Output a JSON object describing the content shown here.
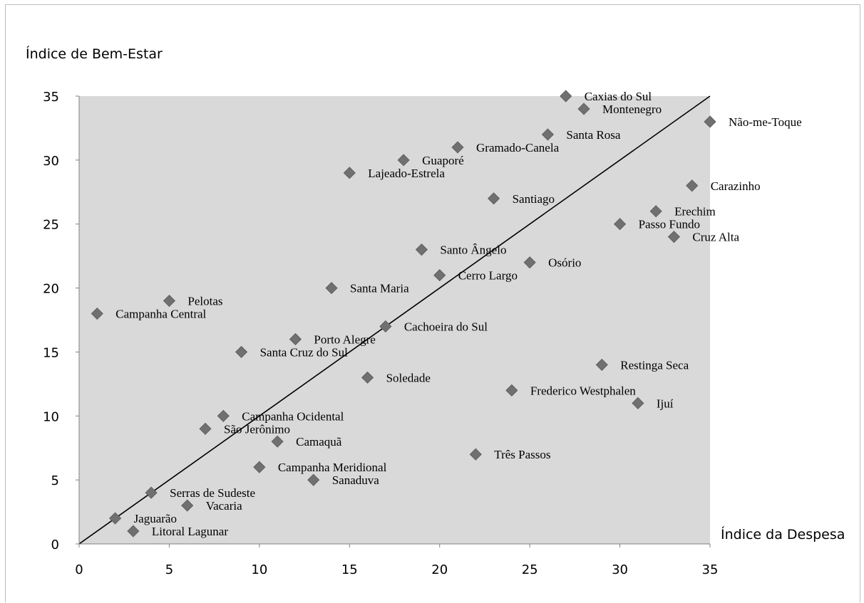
{
  "chart_data": {
    "type": "scatter",
    "title": "",
    "ylabel": "Índice de Bem-Estar",
    "xlabel": "Índice da Despesa",
    "xlim": [
      0,
      35
    ],
    "ylim": [
      0,
      35
    ],
    "xticks": [
      0,
      5,
      10,
      15,
      20,
      25,
      30,
      35
    ],
    "yticks": [
      0,
      5,
      10,
      15,
      20,
      25,
      30,
      35
    ],
    "grid": false,
    "legend": "none",
    "colors": {
      "plot_background": "#d9d9d9",
      "marker": "#707070",
      "reference_line": "#000000"
    },
    "reference_line": {
      "from": [
        0,
        0
      ],
      "to": [
        35,
        35
      ]
    },
    "points": [
      {
        "label": "Caxias do Sul",
        "x": 27,
        "y": 35
      },
      {
        "label": "Montenegro",
        "x": 28,
        "y": 34
      },
      {
        "label": "Não-me-Toque",
        "x": 35,
        "y": 33
      },
      {
        "label": "Santa Rosa",
        "x": 26,
        "y": 32
      },
      {
        "label": "Gramado-Canela",
        "x": 21,
        "y": 31
      },
      {
        "label": "Guaporé",
        "x": 18,
        "y": 30
      },
      {
        "label": "Lajeado-Estrela",
        "x": 15,
        "y": 29
      },
      {
        "label": "Carazinho",
        "x": 34,
        "y": 28
      },
      {
        "label": "Santiago",
        "x": 23,
        "y": 27
      },
      {
        "label": "Erechim",
        "x": 32,
        "y": 26
      },
      {
        "label": "Passo Fundo",
        "x": 30,
        "y": 25
      },
      {
        "label": "Cruz Alta",
        "x": 33,
        "y": 24
      },
      {
        "label": "Santo Ângelo",
        "x": 19,
        "y": 23
      },
      {
        "label": "Osório",
        "x": 25,
        "y": 22
      },
      {
        "label": "Cerro Largo",
        "x": 20,
        "y": 21
      },
      {
        "label": "Santa Maria",
        "x": 14,
        "y": 20
      },
      {
        "label": "Pelotas",
        "x": 5,
        "y": 19
      },
      {
        "label": "Campanha Central",
        "x": 1,
        "y": 18
      },
      {
        "label": "Cachoeira do Sul",
        "x": 17,
        "y": 17
      },
      {
        "label": "Porto Alegre",
        "x": 12,
        "y": 16
      },
      {
        "label": "Santa Cruz do Sul",
        "x": 9,
        "y": 15
      },
      {
        "label": "Restinga Seca",
        "x": 29,
        "y": 14
      },
      {
        "label": "Soledade",
        "x": 16,
        "y": 13
      },
      {
        "label": "Frederico Westphalen",
        "x": 24,
        "y": 12
      },
      {
        "label": "Ijuí",
        "x": 31,
        "y": 11
      },
      {
        "label": "Campanha Ocidental",
        "x": 8,
        "y": 10
      },
      {
        "label": "São Jerônimo",
        "x": 7,
        "y": 9
      },
      {
        "label": "Camaquã",
        "x": 11,
        "y": 8
      },
      {
        "label": "Três Passos",
        "x": 22,
        "y": 7
      },
      {
        "label": "Campanha Meridional",
        "x": 10,
        "y": 6
      },
      {
        "label": "Sanaduva",
        "x": 13,
        "y": 5
      },
      {
        "label": "Serras de Sudeste",
        "x": 4,
        "y": 4
      },
      {
        "label": "Vacaria",
        "x": 6,
        "y": 3
      },
      {
        "label": "Jaguarão",
        "x": 2,
        "y": 2
      },
      {
        "label": "Litoral Lagunar",
        "x": 3,
        "y": 1
      }
    ]
  }
}
